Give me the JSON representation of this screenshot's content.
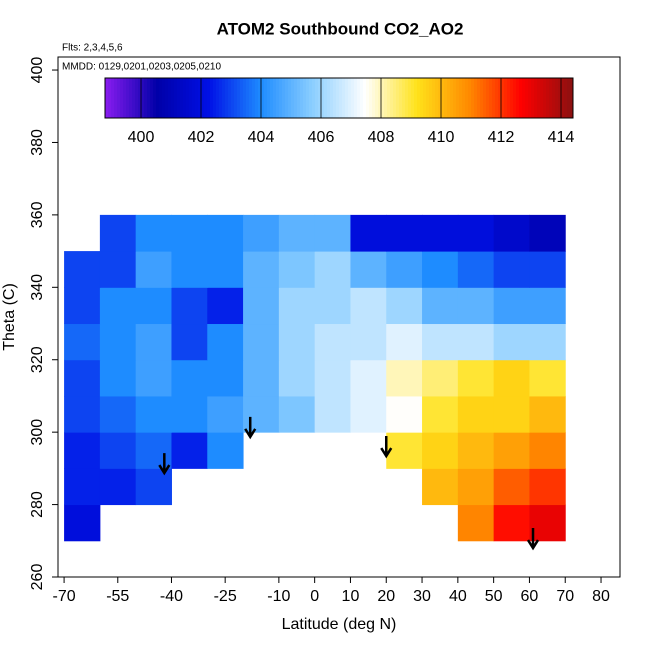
{
  "chart_data": {
    "type": "heatmap",
    "title": "ATOM2 Southbound CO2_AO2",
    "subtitle": "Flts: 2,3,4,5,6",
    "annotation": "MMDD: 0129,0201,0203,0205,0210",
    "x_label": "Latitude (deg N)",
    "y_label": "Theta (C)",
    "xlim": [
      -71.7,
      85.3
    ],
    "ylim": [
      260,
      403.6
    ],
    "xticks": [
      -70,
      -55,
      -40,
      -25,
      -10,
      0,
      10,
      20,
      30,
      40,
      50,
      60,
      70,
      80
    ],
    "yticks": [
      260,
      280,
      300,
      320,
      340,
      360,
      380,
      400
    ],
    "x_bins": [
      -70,
      -60,
      -50,
      -40,
      -30,
      -20,
      -10,
      0,
      10,
      20,
      30,
      40,
      50,
      60,
      70
    ],
    "y_bins": [
      270,
      280,
      290,
      300,
      310,
      320,
      330,
      340,
      350,
      360
    ],
    "z": [
      [
        402,
        null,
        null,
        null,
        null,
        null,
        null,
        null,
        null,
        null,
        null,
        411,
        412.5,
        413
      ],
      [
        402.5,
        402.5,
        403,
        null,
        null,
        null,
        null,
        null,
        null,
        null,
        410,
        410.5,
        411.5,
        412
      ],
      [
        402.5,
        403,
        403.5,
        402.5,
        404,
        null,
        null,
        null,
        null,
        409,
        409.5,
        410,
        410.5,
        411
      ],
      [
        403,
        403.5,
        404,
        404,
        404.5,
        405,
        405.5,
        406.5,
        407,
        407.5,
        409,
        409.5,
        409.5,
        410
      ],
      [
        403,
        404,
        404.5,
        404,
        404,
        405,
        406,
        406.5,
        407,
        408,
        408.5,
        409,
        409.5,
        409
      ],
      [
        403.5,
        404,
        404.5,
        403,
        404,
        405,
        406,
        406.5,
        406.5,
        407,
        406.5,
        406.5,
        406,
        406
      ],
      [
        403,
        404,
        404,
        403,
        402.5,
        405,
        406,
        406,
        406.5,
        406,
        405,
        405,
        404.5,
        404.5
      ],
      [
        403,
        403,
        404.5,
        404,
        404,
        405,
        405.5,
        406,
        405,
        404.5,
        404,
        403.5,
        403,
        403
      ],
      [
        null,
        403,
        404,
        404,
        404,
        404.5,
        405,
        405,
        402,
        402,
        402,
        402,
        401.5,
        401
      ]
    ],
    "clim": [
      398.8,
      414.4
    ],
    "colorbar_ticks": [
      400,
      402,
      404,
      406,
      408,
      410,
      412,
      414
    ],
    "colors": [
      "#8a1cf0",
      "#0000a8",
      "#0010e6",
      "#1e8cff",
      "#8ccfff",
      "#ffffff",
      "#ffe21a",
      "#ff8a00",
      "#ff0000",
      "#8b1010"
    ],
    "arrows": {
      "x": [
        -42,
        -18,
        20,
        61
      ],
      "y": [
        288.7,
        298.7,
        293.4,
        268
      ]
    }
  }
}
